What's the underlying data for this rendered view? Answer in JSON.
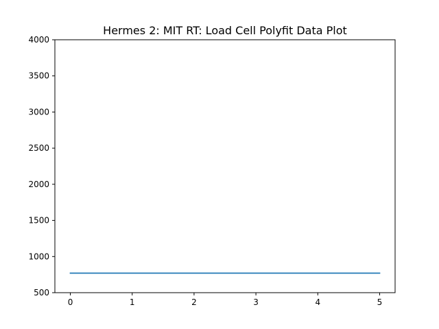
{
  "chart_data": {
    "type": "line",
    "title": "Hermes 2: MIT RT: Load Cell Polyfit Data Plot",
    "xlabel": "",
    "ylabel": "",
    "xlim": [
      -0.25,
      5.25
    ],
    "ylim": [
      500,
      4000
    ],
    "x_ticks": [
      0,
      1,
      2,
      3,
      4,
      5
    ],
    "x_tick_labels": [
      "0",
      "1",
      "2",
      "3",
      "4",
      "5"
    ],
    "y_ticks": [
      500,
      1000,
      1500,
      2000,
      2500,
      3000,
      3500,
      4000
    ],
    "y_tick_labels": [
      "500",
      "1000",
      "1500",
      "2000",
      "2500",
      "3000",
      "3500",
      "4000"
    ],
    "grid": false,
    "series": [
      {
        "color": "#1f77b4",
        "x": [
          0,
          1,
          2,
          3,
          4,
          5
        ],
        "values": [
          770,
          770,
          770,
          770,
          770,
          770
        ]
      }
    ]
  }
}
